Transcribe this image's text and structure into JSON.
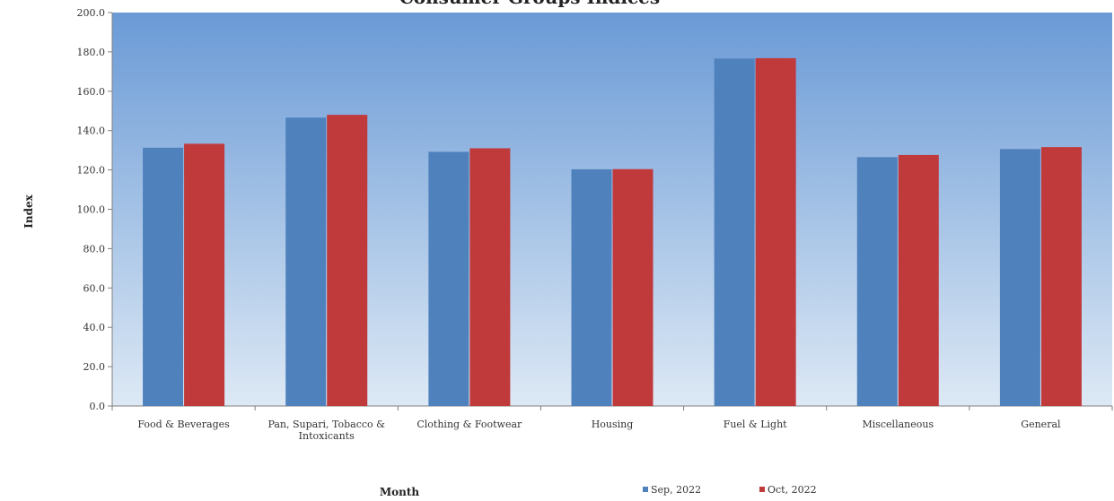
{
  "chart_data": {
    "type": "bar",
    "title": "Consumer Groups Indices",
    "xlabel": "Month",
    "ylabel": "Index",
    "ylim": [
      0,
      200
    ],
    "yticks": [
      "0.0",
      "20.0",
      "40.0",
      "60.0",
      "80.0",
      "100.0",
      "120.0",
      "140.0",
      "160.0",
      "180.0",
      "200.0"
    ],
    "grid": false,
    "legend_position": "bottom",
    "categories": [
      [
        "Food & Beverages"
      ],
      [
        "Pan, Supari, Tobacco &",
        "Intoxicants"
      ],
      [
        "Clothing & Footwear"
      ],
      [
        "Housing"
      ],
      [
        "Fuel & Light"
      ],
      [
        "Miscellaneous"
      ],
      [
        "General"
      ]
    ],
    "series": [
      {
        "name": "Sep, 2022",
        "color": "#4f81bd",
        "values": [
          131.3,
          146.6,
          129.2,
          120.3,
          176.6,
          126.5,
          130.6
        ]
      },
      {
        "name": "Oct, 2022",
        "color": "#c0393b",
        "values": [
          133.3,
          148.0,
          131.0,
          120.4,
          176.8,
          127.6,
          131.6
        ]
      }
    ],
    "colors": {
      "plot_bg_top": "#6a9ad6",
      "plot_bg_bottom": "#dde9f5"
    }
  }
}
